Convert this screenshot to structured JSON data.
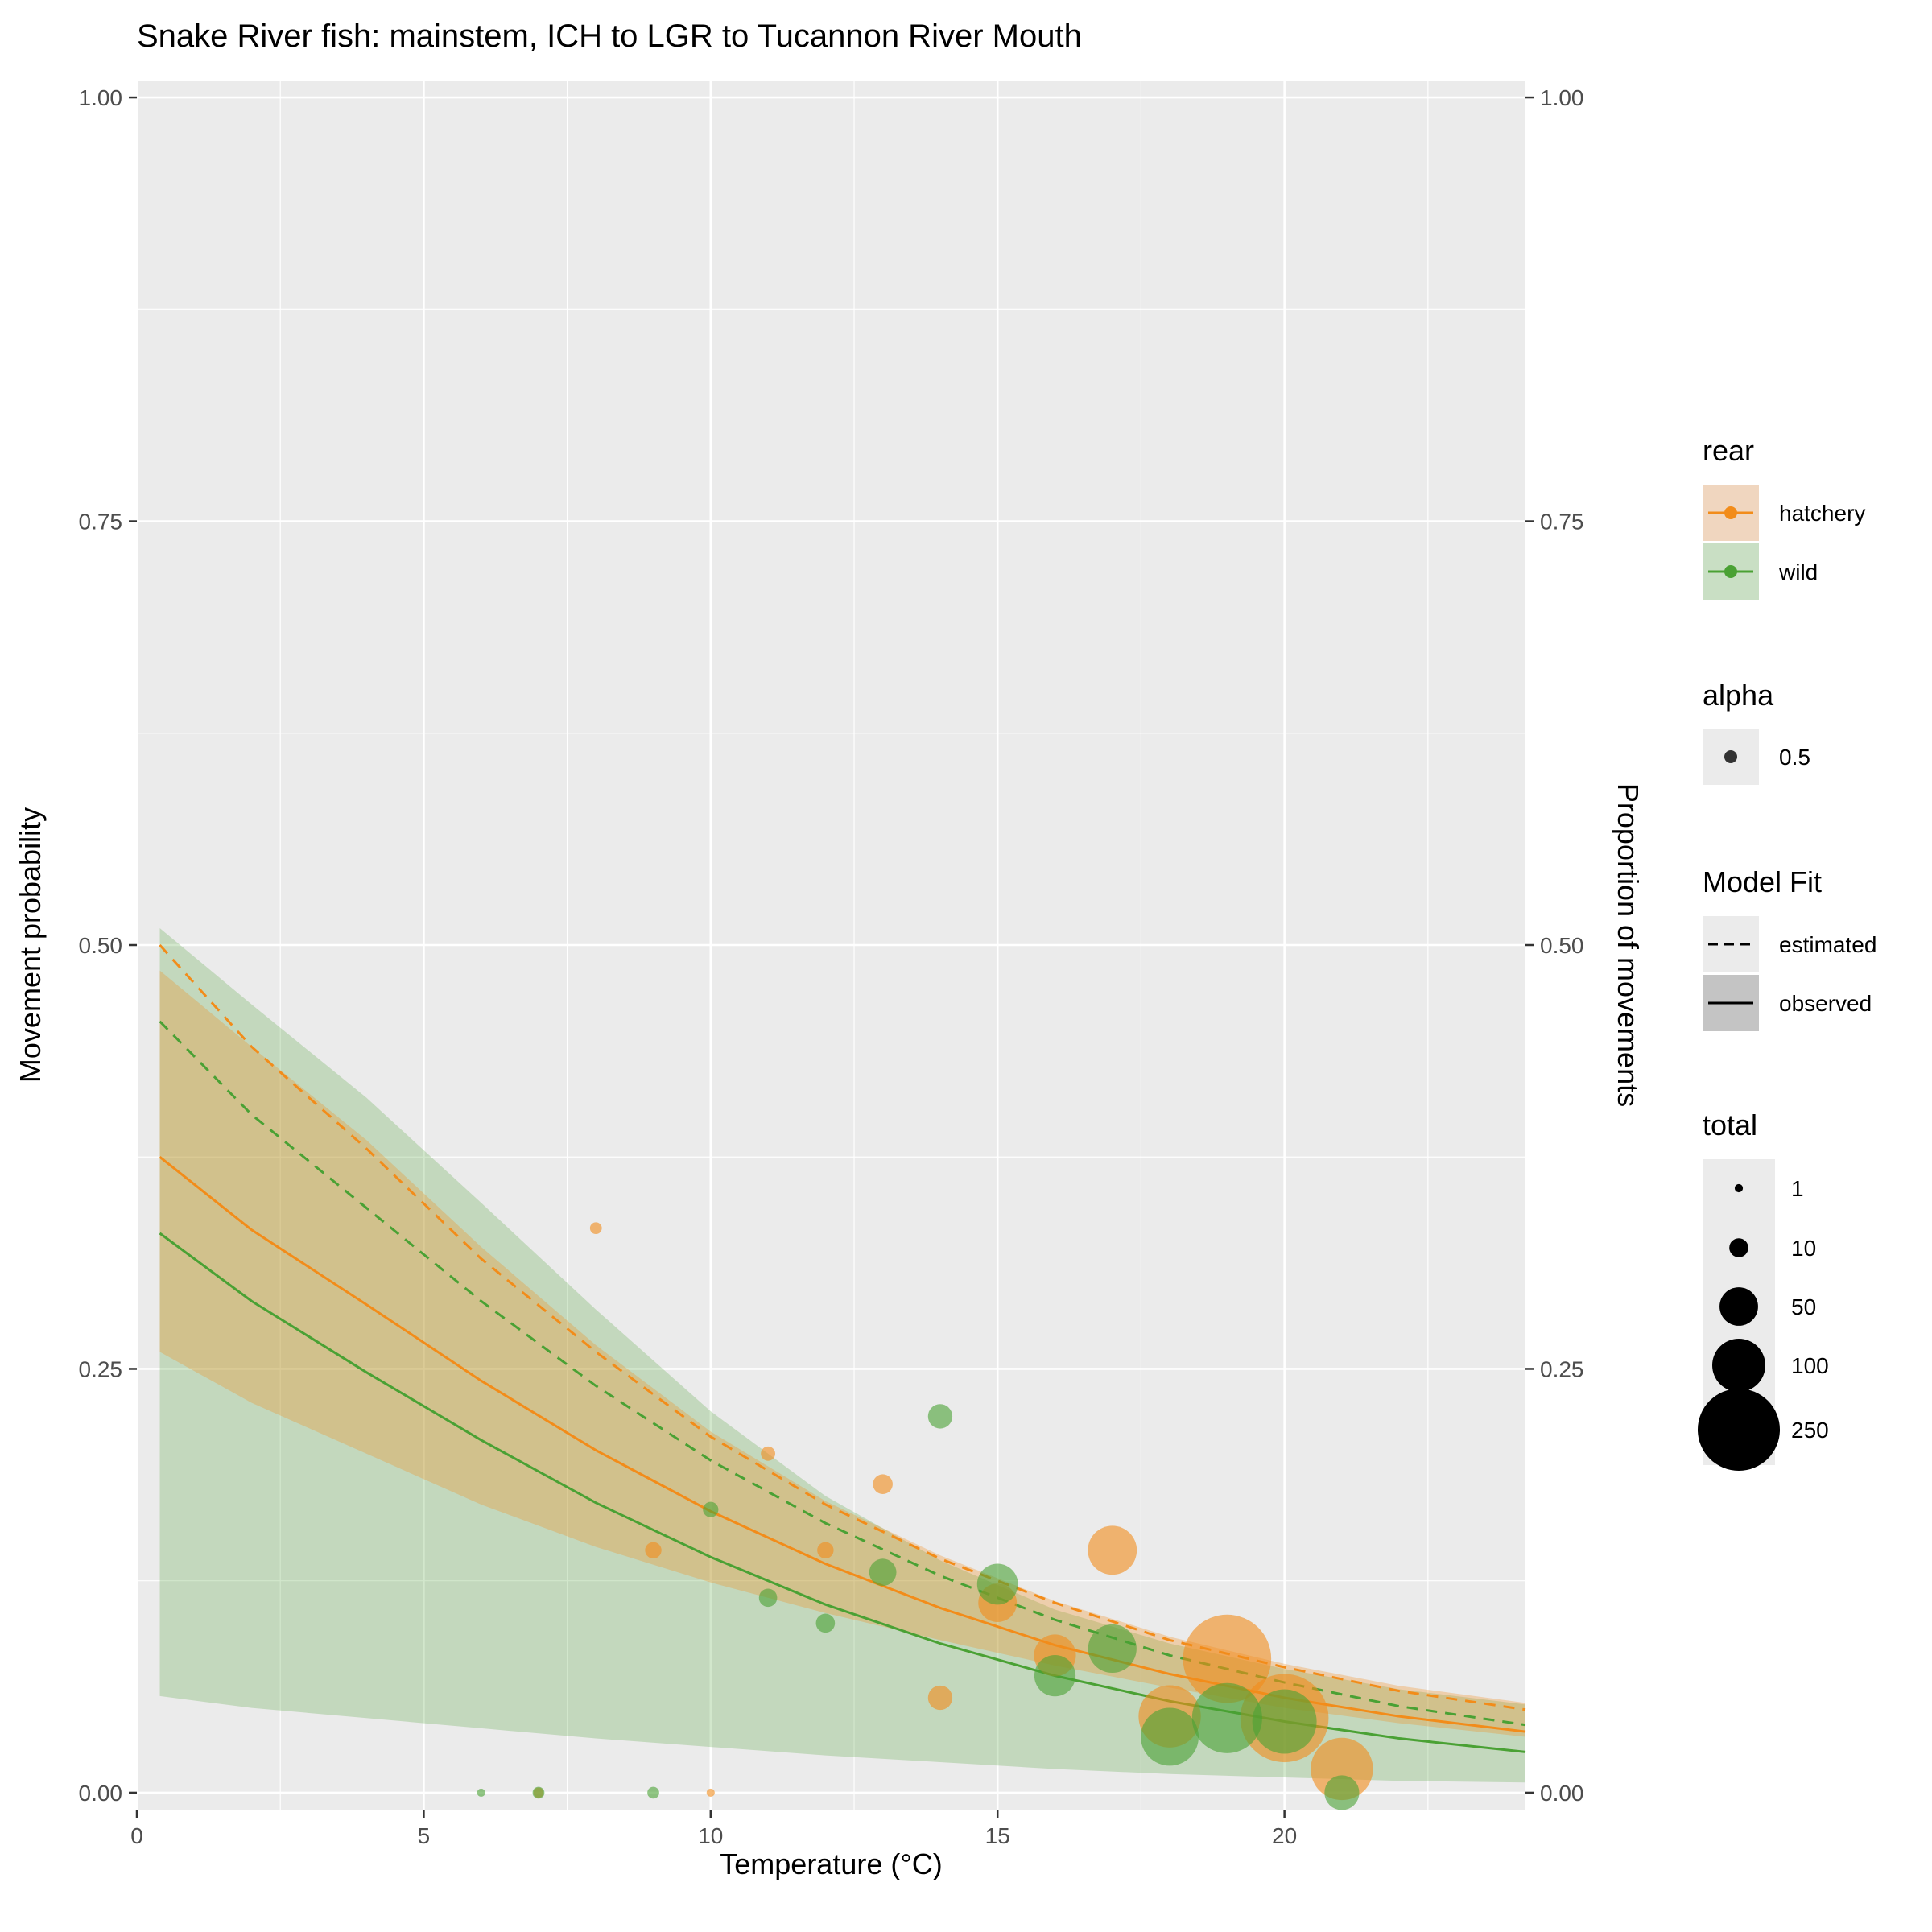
{
  "chart_data": {
    "type": "line",
    "title": "Snake River fish: mainstem, ICH to LGR to Tucannon River Mouth",
    "xlabel": "Temperature (°C)",
    "ylabel": "Movement probability",
    "ylabel_right": "Proportion of movements",
    "xlim": [
      0,
      24.2
    ],
    "ylim": [
      -0.01,
      1.01
    ],
    "x_ticks": [
      0,
      5,
      10,
      15,
      20
    ],
    "x_tick_labels": [
      "0",
      "5",
      "10",
      "15",
      "20"
    ],
    "y_ticks": [
      0,
      0.25,
      0.5,
      0.75,
      1
    ],
    "y_tick_labels": [
      "0.00",
      "0.25",
      "0.50",
      "0.75",
      "1.00"
    ],
    "grid": true,
    "legend_position": "right",
    "colors": {
      "hatchery": "#f28c1a",
      "wild": "#4aa134",
      "panel": "#ebebeb"
    },
    "x": [
      0.4,
      2,
      4,
      6,
      8,
      10,
      12,
      14,
      16,
      18,
      20,
      22,
      24.2
    ],
    "series": [
      {
        "name": "hatchery",
        "kind": "estimated",
        "values": [
          0.5,
          0.44,
          0.38,
          0.315,
          0.26,
          0.21,
          0.17,
          0.138,
          0.112,
          0.09,
          0.074,
          0.06,
          0.049
        ]
      },
      {
        "name": "hatchery",
        "kind": "observed",
        "values": [
          0.375,
          0.332,
          0.288,
          0.243,
          0.202,
          0.166,
          0.135,
          0.109,
          0.087,
          0.07,
          0.056,
          0.045,
          0.036
        ]
      },
      {
        "name": "wild",
        "kind": "estimated",
        "values": [
          0.455,
          0.4,
          0.345,
          0.29,
          0.24,
          0.196,
          0.159,
          0.128,
          0.102,
          0.081,
          0.065,
          0.051,
          0.04
        ]
      },
      {
        "name": "wild",
        "kind": "observed",
        "values": [
          0.33,
          0.29,
          0.248,
          0.208,
          0.171,
          0.139,
          0.111,
          0.088,
          0.069,
          0.054,
          0.042,
          0.032,
          0.024
        ]
      }
    ],
    "bands": [
      {
        "name": "wild",
        "lower": [
          0.057,
          0.05,
          0.044,
          0.038,
          0.032,
          0.027,
          0.022,
          0.018,
          0.014,
          0.011,
          0.009,
          0.007,
          0.006
        ],
        "upper": [
          0.51,
          0.465,
          0.41,
          0.348,
          0.285,
          0.225,
          0.175,
          0.137,
          0.108,
          0.088,
          0.073,
          0.061,
          0.052
        ]
      },
      {
        "name": "hatchery",
        "lower": [
          0.26,
          0.23,
          0.2,
          0.17,
          0.145,
          0.124,
          0.106,
          0.09,
          0.075,
          0.062,
          0.05,
          0.041,
          0.033
        ],
        "upper": [
          0.485,
          0.44,
          0.385,
          0.322,
          0.264,
          0.213,
          0.172,
          0.14,
          0.113,
          0.092,
          0.076,
          0.063,
          0.053
        ]
      }
    ],
    "points": [
      {
        "rear": "hatchery",
        "x": 7,
        "y": 0,
        "total": 2
      },
      {
        "rear": "hatchery",
        "x": 8,
        "y": 0.333,
        "total": 3
      },
      {
        "rear": "hatchery",
        "x": 9,
        "y": 0.143,
        "total": 7
      },
      {
        "rear": "hatchery",
        "x": 10,
        "y": 0,
        "total": 1
      },
      {
        "rear": "hatchery",
        "x": 11,
        "y": 0.2,
        "total": 5
      },
      {
        "rear": "hatchery",
        "x": 12,
        "y": 0.143,
        "total": 7
      },
      {
        "rear": "hatchery",
        "x": 13,
        "y": 0.182,
        "total": 11
      },
      {
        "rear": "hatchery",
        "x": 14,
        "y": 0.056,
        "total": 18
      },
      {
        "rear": "hatchery",
        "x": 15,
        "y": 0.112,
        "total": 50
      },
      {
        "rear": "hatchery",
        "x": 16,
        "y": 0.081,
        "total": 60
      },
      {
        "rear": "hatchery",
        "x": 17,
        "y": 0.143,
        "total": 84
      },
      {
        "rear": "hatchery",
        "x": 18,
        "y": 0.045,
        "total": 140
      },
      {
        "rear": "hatchery",
        "x": 19,
        "y": 0.079,
        "total": 290
      },
      {
        "rear": "hatchery",
        "x": 20,
        "y": 0.044,
        "total": 290
      },
      {
        "rear": "hatchery",
        "x": 21,
        "y": 0.014,
        "total": 140
      },
      {
        "rear": "wild",
        "x": 6,
        "y": 0,
        "total": 1
      },
      {
        "rear": "wild",
        "x": 7,
        "y": 0,
        "total": 3
      },
      {
        "rear": "wild",
        "x": 9,
        "y": 0,
        "total": 3
      },
      {
        "rear": "wild",
        "x": 10,
        "y": 0.167,
        "total": 6
      },
      {
        "rear": "wild",
        "x": 11,
        "y": 0.115,
        "total": 9
      },
      {
        "rear": "wild",
        "x": 12,
        "y": 0.1,
        "total": 10
      },
      {
        "rear": "wild",
        "x": 13,
        "y": 0.13,
        "total": 23
      },
      {
        "rear": "wild",
        "x": 14,
        "y": 0.222,
        "total": 18
      },
      {
        "rear": "wild",
        "x": 15,
        "y": 0.123,
        "total": 57
      },
      {
        "rear": "wild",
        "x": 16,
        "y": 0.069,
        "total": 58
      },
      {
        "rear": "wild",
        "x": 17,
        "y": 0.085,
        "total": 82
      },
      {
        "rear": "wild",
        "x": 18,
        "y": 0.033,
        "total": 120
      },
      {
        "rear": "wild",
        "x": 19,
        "y": 0.044,
        "total": 180
      },
      {
        "rear": "wild",
        "x": 20,
        "y": 0.042,
        "total": 150
      },
      {
        "rear": "wild",
        "x": 21,
        "y": 0,
        "total": 40
      }
    ],
    "point_alpha": 0.5,
    "legends": {
      "rear": {
        "title": "rear",
        "items": [
          "hatchery",
          "wild"
        ]
      },
      "alpha": {
        "title": "alpha",
        "items": [
          "0.5"
        ]
      },
      "model_fit": {
        "title": "Model Fit",
        "items": [
          "estimated",
          "observed"
        ]
      },
      "total": {
        "title": "total",
        "items": [
          1,
          10,
          50,
          100,
          250
        ],
        "labels": [
          "1",
          "10",
          "50",
          "100",
          "250"
        ]
      }
    }
  }
}
